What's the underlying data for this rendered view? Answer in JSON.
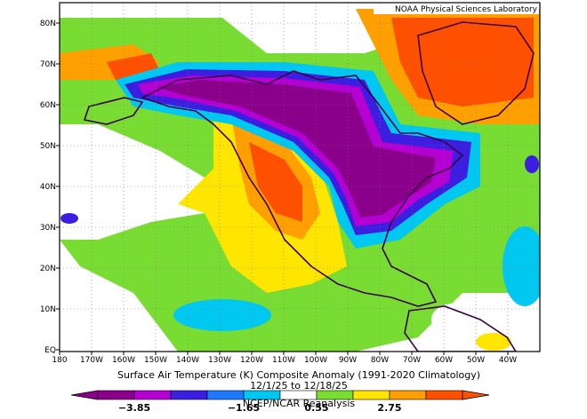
{
  "credit": "NOAA Physical Sciences Laboratory",
  "title_line1": "Surface Air Temperature (K) Composite Anomaly (1991-2020 Climatology)",
  "title_line2": "12/1/25 to 12/18/25",
  "title_line3": "NCEP/NCAR Reanalysis",
  "map": {
    "lat_labels": [
      "80N",
      "70N",
      "60N",
      "50N",
      "40N",
      "30N",
      "20N",
      "10N",
      "EQ"
    ],
    "lon_labels": [
      "180",
      "170W",
      "160W",
      "150W",
      "140W",
      "130W",
      "120W",
      "110W",
      "100W",
      "90W",
      "80W",
      "70W",
      "60W",
      "50W",
      "40W"
    ]
  },
  "colorbar": {
    "colors": [
      "#8b008b",
      "#b400d2",
      "#3c1ee0",
      "#1e78ff",
      "#00c8f0",
      "#ffffff",
      "#78dc32",
      "#ffe600",
      "#ffa000",
      "#ff5000"
    ],
    "tick_labels": [
      "−3.85",
      "−1.65",
      "0.55",
      "2.75"
    ]
  },
  "colors": {
    "land_outline": "#3c0046",
    "grid": "#777777"
  }
}
